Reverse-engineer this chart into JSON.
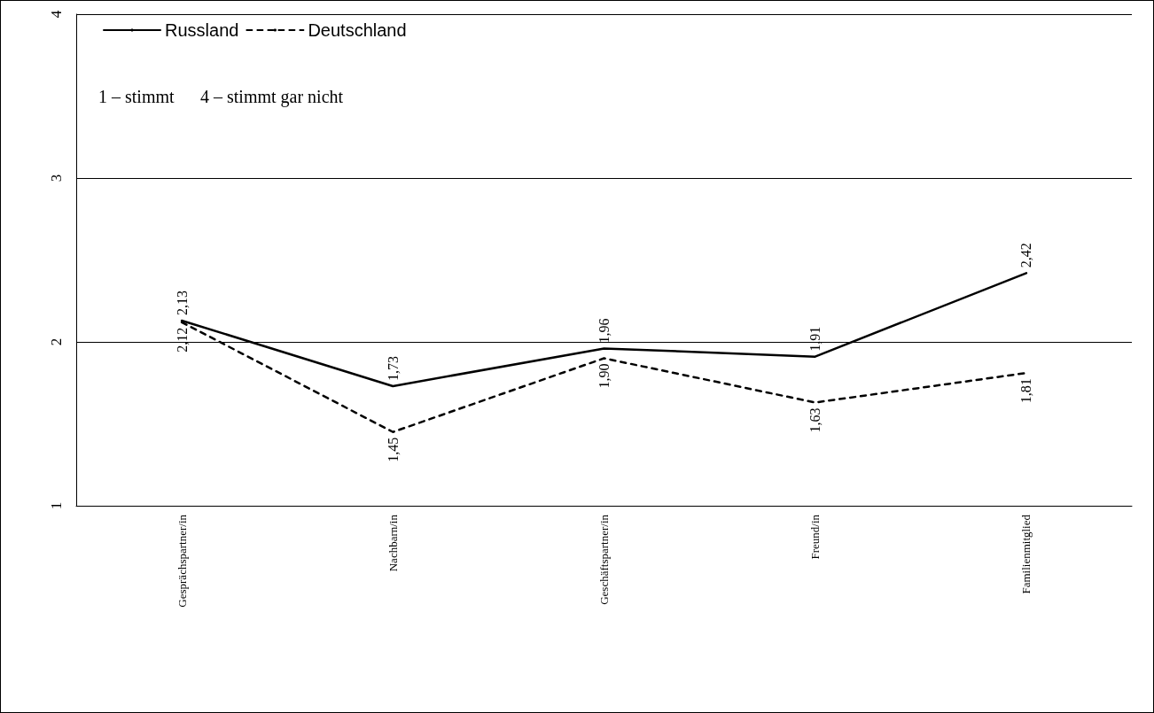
{
  "chart_data": {
    "type": "line",
    "categories": [
      "Gesprächspartner/in",
      "Nachbarn/in",
      "Geschäftspartner/in",
      "Freund/in",
      "Familienmitglied"
    ],
    "series": [
      {
        "name": "Russland",
        "color": "#000000",
        "line_style": "solid",
        "values": [
          2.13,
          1.73,
          1.96,
          1.91,
          2.42
        ],
        "value_labels": [
          "2,13",
          "1,73",
          "1,96",
          "1,91",
          "2,42"
        ]
      },
      {
        "name": "Deutschland",
        "color": "#000000",
        "line_style": "dashed",
        "values": [
          2.12,
          1.45,
          1.9,
          1.63,
          1.81
        ],
        "value_labels": [
          "2,12",
          "1,45",
          "1,90",
          "1,63",
          "1,81"
        ]
      }
    ],
    "ylim": [
      1,
      4
    ],
    "yticks": [
      1,
      2,
      3,
      4
    ],
    "grid": "y",
    "legend": "top left",
    "marker": "none",
    "annotations": [
      "1 – stimmt",
      "4 – stimmt gar nicht"
    ]
  }
}
